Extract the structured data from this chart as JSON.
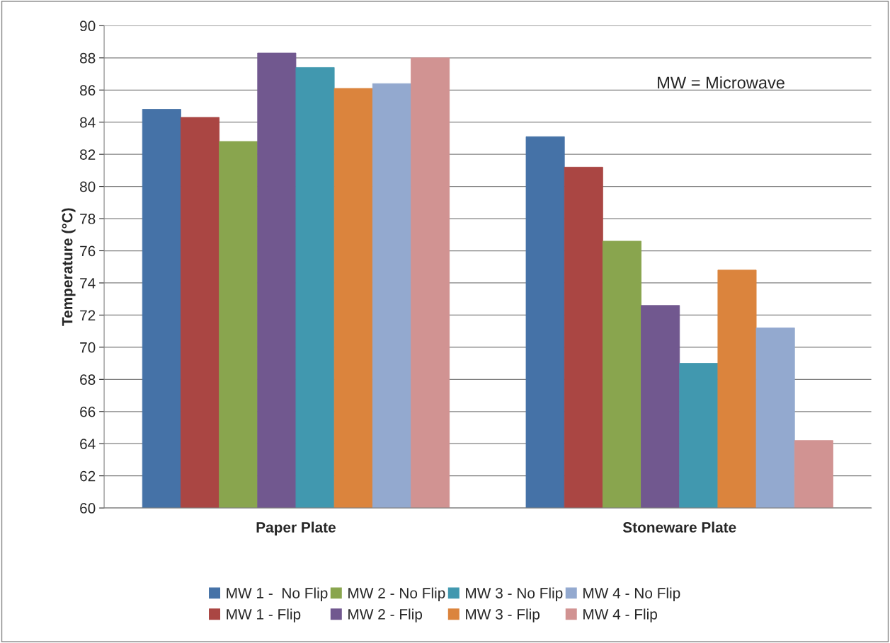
{
  "chart_data": {
    "type": "bar",
    "ylabel": "Temperature (°C)",
    "categories": [
      "Paper Plate",
      "Stoneware Plate"
    ],
    "series": [
      {
        "name": "MW 1 -  No Flip",
        "color": "#4572a7",
        "values": [
          84.8,
          83.1
        ]
      },
      {
        "name": "MW 1 - Flip",
        "color": "#aa4643",
        "values": [
          84.3,
          81.2
        ]
      },
      {
        "name": "MW 2 - No Flip",
        "color": "#89a54e",
        "values": [
          82.8,
          76.6
        ]
      },
      {
        "name": "MW 2 - Flip",
        "color": "#71588f",
        "values": [
          88.3,
          72.6
        ]
      },
      {
        "name": "MW 3 - No Flip",
        "color": "#4198af",
        "values": [
          87.4,
          69.0
        ]
      },
      {
        "name": "MW 3 - Flip",
        "color": "#db843d",
        "values": [
          86.1,
          74.8
        ]
      },
      {
        "name": "MW 4 - No Flip",
        "color": "#93a9cf",
        "values": [
          86.4,
          71.2
        ]
      },
      {
        "name": "MW 4 - Flip",
        "color": "#d19392",
        "values": [
          88.0,
          64.2
        ]
      }
    ],
    "ylim": [
      60,
      90
    ],
    "yticks": [
      60,
      62,
      64,
      66,
      68,
      70,
      72,
      74,
      76,
      78,
      80,
      82,
      84,
      86,
      88,
      90
    ],
    "grid": "y",
    "legend": "bottom",
    "annotations": [
      "MW = Microwave"
    ]
  }
}
